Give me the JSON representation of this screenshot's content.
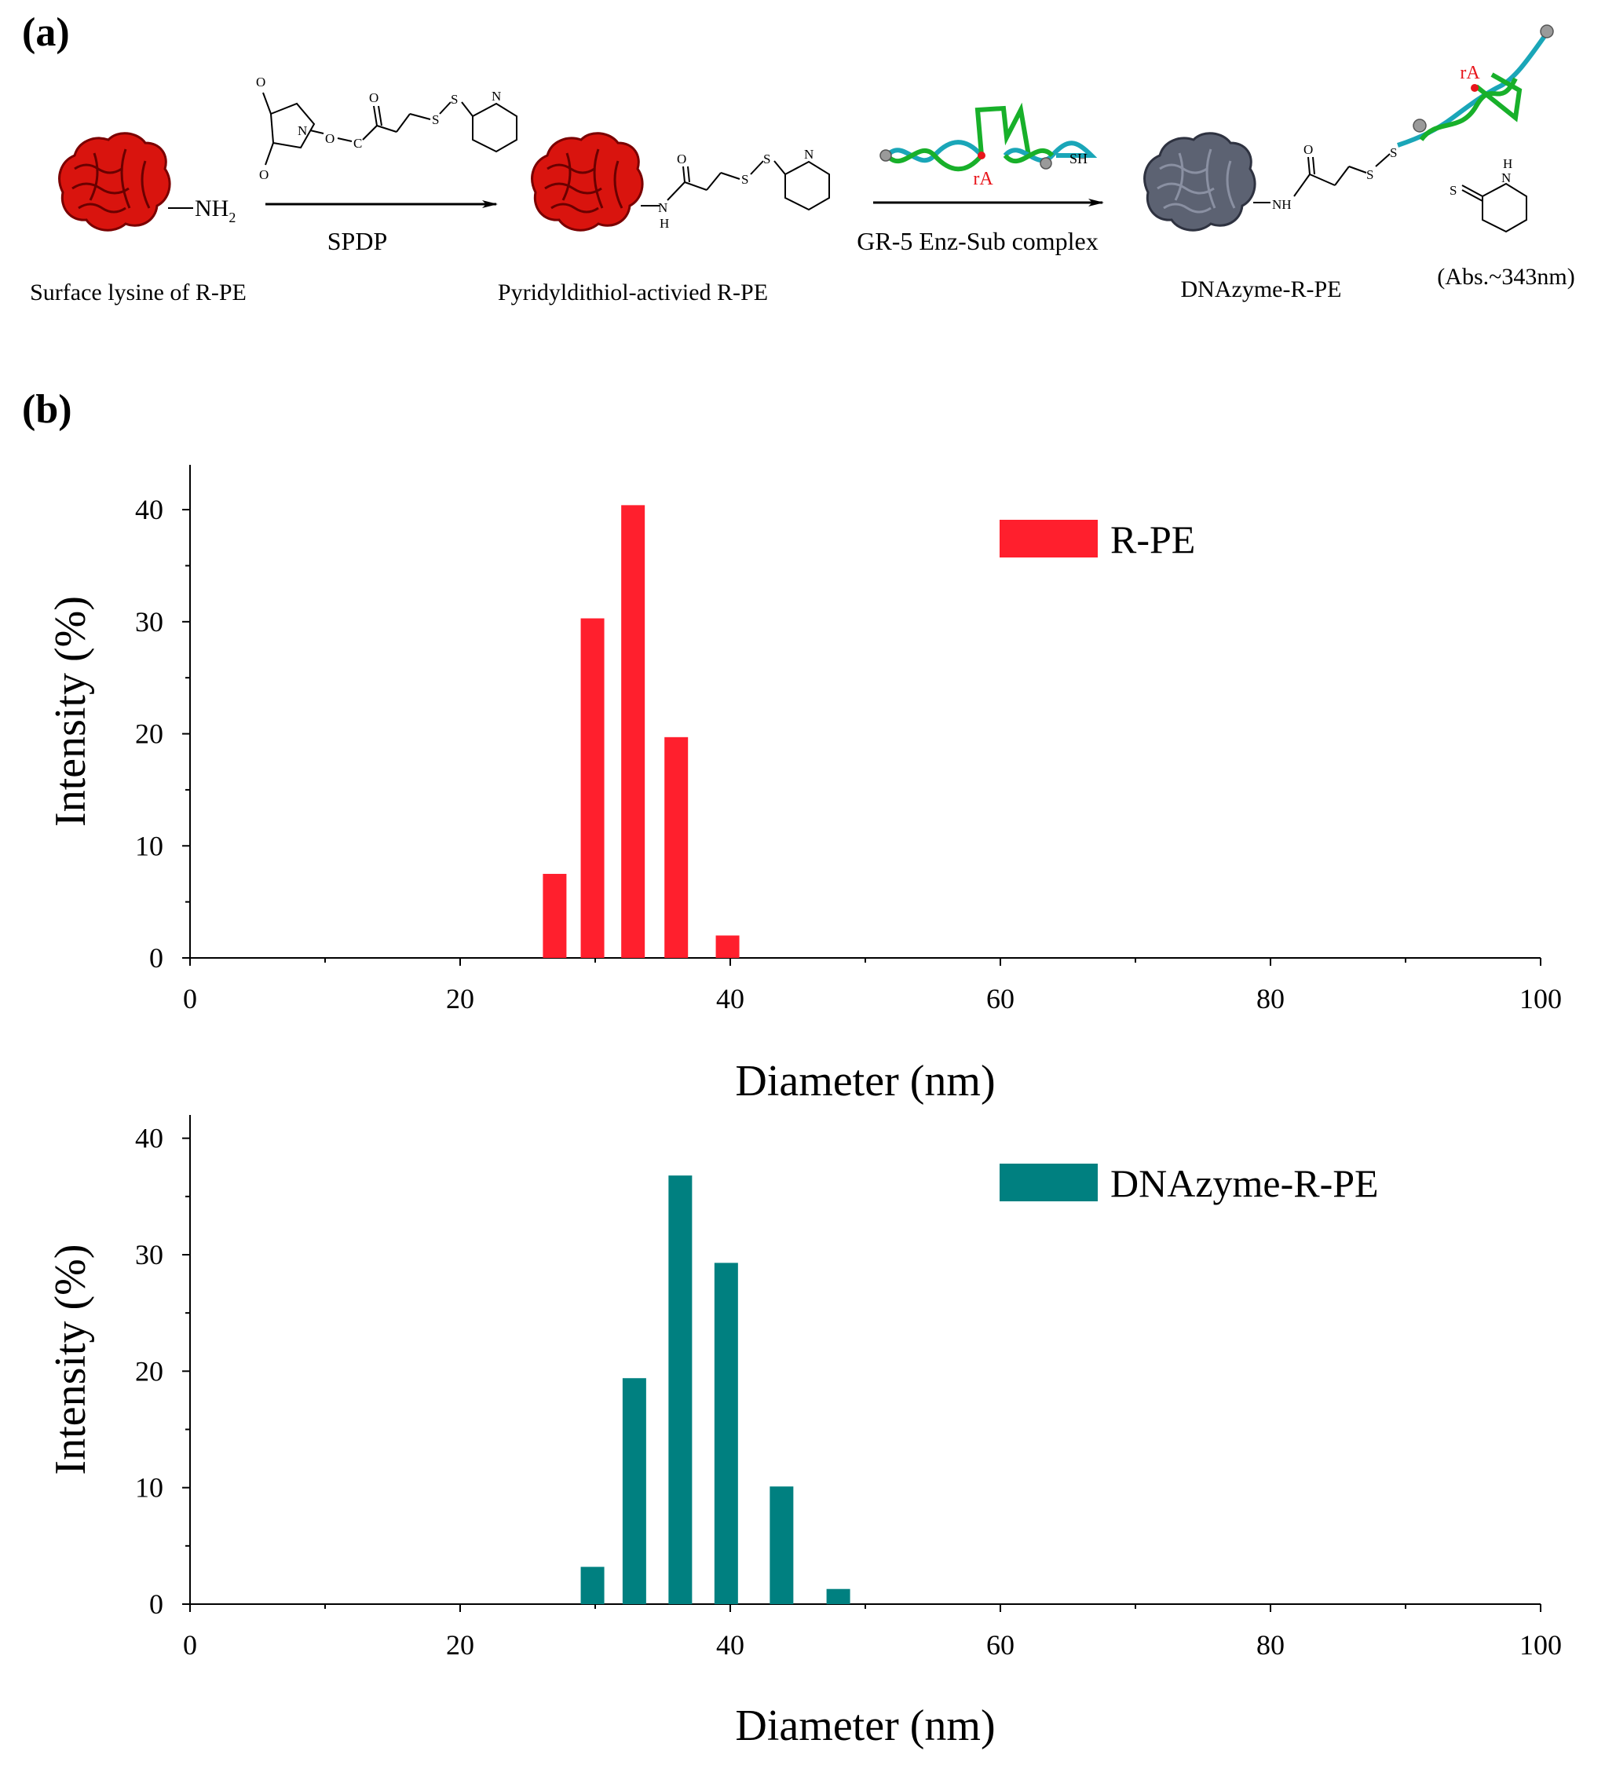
{
  "panel_a": {
    "label": "(a)",
    "compound1": "Surface lysine of R-PE",
    "compound1_group": "NH",
    "compound1_group_sub": "2",
    "reagent1": "SPDP",
    "compound2": "Pyridyldithiol-activied R-PE",
    "reagent2": "GR-5 Enz-Sub complex",
    "ra_label": "rA",
    "sh_label": "SH",
    "compound3": "DNAzyme-R-PE",
    "nh_label": "NH",
    "byproduct_note": "(Abs.~343nm)",
    "atoms": {
      "O": "O",
      "N": "N",
      "S": "S",
      "H": "H",
      "C": "C"
    },
    "colors": {
      "protein_red": "#d9140e",
      "protein_gray": "#5c6272",
      "dna_cyan": "#1aa6b8",
      "dna_green": "#18b02a",
      "marker_red": "#e8151b"
    }
  },
  "panel_b": {
    "label": "(b)"
  },
  "chart_data": [
    {
      "type": "bar",
      "title": "",
      "xlabel": "Diameter (nm)",
      "ylabel": "Intensity (%)",
      "xlim": [
        0,
        100
      ],
      "ylim": [
        0,
        44
      ],
      "x_ticks": [
        0,
        20,
        40,
        60,
        80,
        100
      ],
      "y_ticks": [
        0,
        10,
        20,
        30,
        40
      ],
      "legend": "top-right",
      "series": [
        {
          "name": "R-PE",
          "color": "#ff1f2d",
          "x": [
            27.0,
            29.8,
            32.8,
            36.0,
            39.8
          ],
          "values": [
            7.5,
            30.3,
            40.4,
            19.7,
            2.0
          ]
        }
      ]
    },
    {
      "type": "bar",
      "title": "",
      "xlabel": "Diameter (nm)",
      "ylabel": "Intensity (%)",
      "xlim": [
        0,
        100
      ],
      "ylim": [
        0,
        42
      ],
      "x_ticks": [
        0,
        20,
        40,
        60,
        80,
        100
      ],
      "y_ticks": [
        0,
        10,
        20,
        30,
        40
      ],
      "legend": "top-right",
      "series": [
        {
          "name": "DNAzyme-R-PE",
          "color": "#008080",
          "x": [
            29.8,
            32.9,
            36.3,
            39.7,
            43.8,
            48.0
          ],
          "values": [
            3.2,
            19.4,
            36.8,
            29.3,
            10.1,
            1.3
          ]
        }
      ]
    }
  ]
}
